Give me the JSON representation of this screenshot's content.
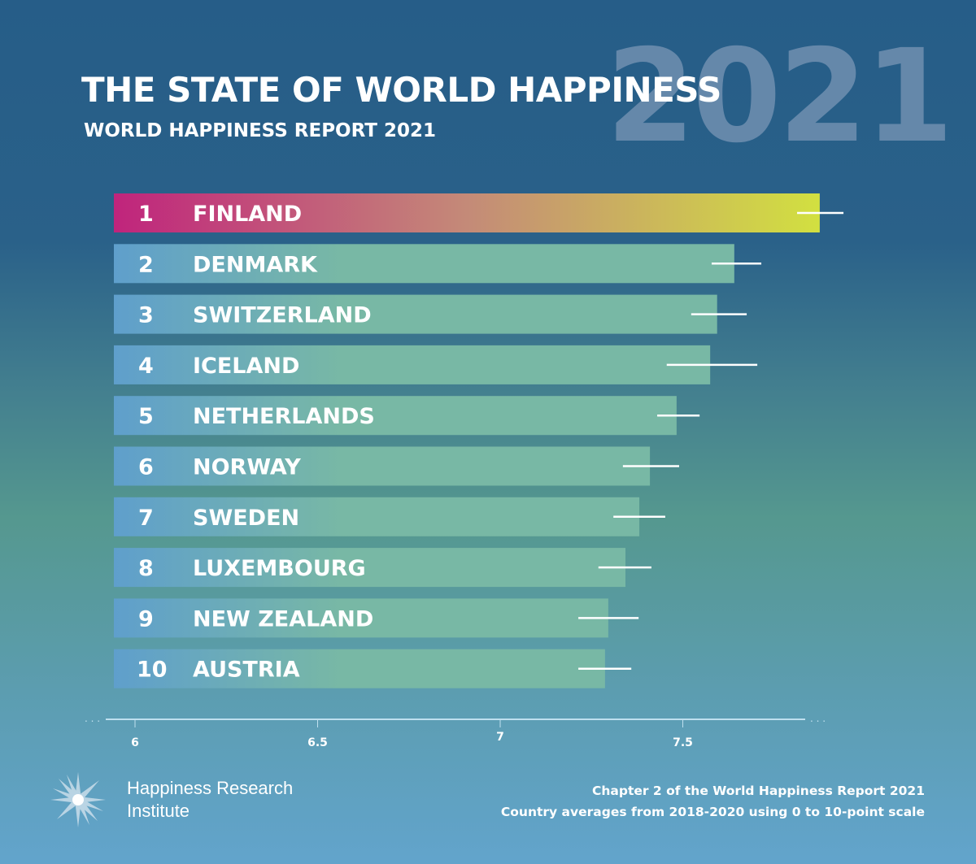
{
  "header": {
    "title": "THE STATE OF WORLD HAPPINESS",
    "subtitle": "WORLD HAPPINESS REPORT 2021",
    "year_backdrop": "2021"
  },
  "chart_data": {
    "type": "bar",
    "orientation": "horizontal",
    "categories": [
      "FINLAND",
      "DENMARK",
      "SWITZERLAND",
      "ICELAND",
      "NETHERLANDS",
      "NORWAY",
      "SWEDEN",
      "LUXEMBOURG",
      "NEW ZEALAND",
      "AUSTRIA"
    ],
    "ranks": [
      "1",
      "2",
      "3",
      "4",
      "5",
      "6",
      "7",
      "8",
      "9",
      "10"
    ],
    "values": [
      7.875,
      7.641,
      7.594,
      7.575,
      7.483,
      7.41,
      7.381,
      7.343,
      7.296,
      7.287
    ],
    "error_low": [
      7.813,
      7.579,
      7.523,
      7.456,
      7.43,
      7.336,
      7.31,
      7.269,
      7.214,
      7.214
    ],
    "error_high": [
      7.94,
      7.715,
      7.675,
      7.704,
      7.546,
      7.49,
      7.452,
      7.414,
      7.379,
      7.359
    ],
    "xlim": [
      5.94,
      7.98
    ],
    "xticks": [
      6,
      6.5,
      7,
      7.5
    ],
    "xtick_labels": [
      "6",
      "6.5",
      "7",
      "7.5"
    ],
    "grid": false,
    "colors": {
      "highlight_start": "#c0247c",
      "highlight_end": "#d2e040",
      "bar_start": "#5f9fcc",
      "bar_end": "#78b8a5",
      "error_bar": "#ffffff"
    }
  },
  "footer": {
    "logo_line1": "Happiness Research",
    "logo_line2": "Institute",
    "note_line1": "Chapter 2 of the World Happiness Report 2021",
    "note_line2": "Country averages from 2018-2020 using 0 to 10-point scale",
    "logo_icon": "starburst-icon"
  }
}
